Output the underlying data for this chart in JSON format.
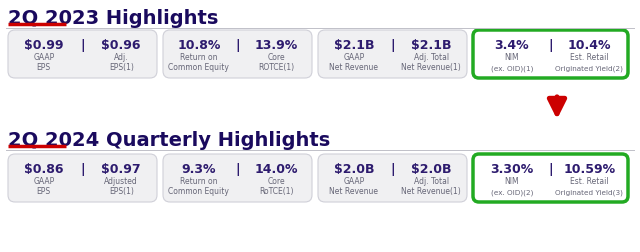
{
  "bg_color": "#ffffff",
  "title_2023": "2Q 2023 Highlights",
  "title_2024": "2Q 2024 Quarterly Highlights",
  "title_color": "#1a0a5e",
  "underline_color": "#cc0000",
  "box_bg": "#f0f0f2",
  "box_border": "#d0d0d8",
  "highlight_border": "#22aa22",
  "text_purple": "#2d1b6e",
  "text_gray": "#666677",
  "row2023": [
    {
      "val_left": "$0.99",
      "val_right": "$0.96",
      "lbl_left_1": "GAAP",
      "lbl_left_2": "EPS",
      "lbl_right_1": "Adj.",
      "lbl_right_2": "EPS(1)"
    },
    {
      "val_left": "10.8%",
      "val_right": "13.9%",
      "lbl_left_1": "Return on",
      "lbl_left_2": "Common Equity",
      "lbl_right_1": "Core",
      "lbl_right_2": "ROTCE(1)"
    },
    {
      "val_left": "$2.1B",
      "val_right": "$2.1B",
      "lbl_left_1": "GAAP",
      "lbl_left_2": "Net Revenue",
      "lbl_right_1": "Adj. Total",
      "lbl_right_2": "Net Revenue(1)"
    }
  ],
  "row2024": [
    {
      "val_left": "$0.86",
      "val_right": "$0.97",
      "lbl_left_1": "GAAP",
      "lbl_left_2": "EPS",
      "lbl_right_1": "Adjusted",
      "lbl_right_2": "EPS(1)"
    },
    {
      "val_left": "9.3%",
      "val_right": "14.0%",
      "lbl_left_1": "Return on",
      "lbl_left_2": "Common Equity",
      "lbl_right_1": "Core",
      "lbl_right_2": "RoTCE(1)"
    },
    {
      "val_left": "$2.0B",
      "val_right": "$2.0B",
      "lbl_left_1": "GAAP",
      "lbl_left_2": "Net Revenue",
      "lbl_right_1": "Adj. Total",
      "lbl_right_2": "Net Revenue(1)"
    }
  ],
  "hi2023_left_val": "3.4%",
  "hi2023_right_val": "10.4%",
  "hi2023_lbl_left_1": "NIM",
  "hi2023_lbl_left_2": "(ex. OID)(1)",
  "hi2023_lbl_right_1": "Est. Retail",
  "hi2023_lbl_right_2": "Originated Yield(2)",
  "hi2024_left_val": "3.30%",
  "hi2024_right_val": "10.59%",
  "hi2024_lbl_left_1": "NIM",
  "hi2024_lbl_left_2": "(ex. OID)(2)",
  "hi2024_lbl_right_1": "Est. Retail",
  "hi2024_lbl_right_2": "Originated Yield(3)"
}
